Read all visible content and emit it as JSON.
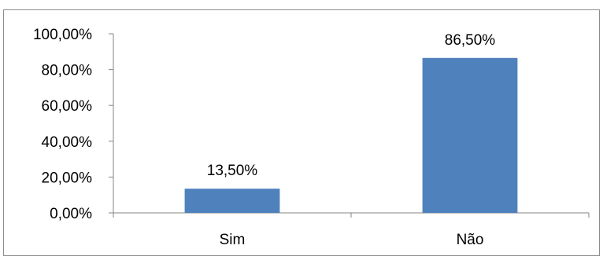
{
  "chart_data": {
    "type": "bar",
    "categories": [
      "Sim",
      "Não"
    ],
    "values": [
      13.5,
      86.5
    ],
    "data_labels": [
      "13,50%",
      "86,50%"
    ],
    "y_ticks": [
      "0,00%",
      "20,00%",
      "40,00%",
      "60,00%",
      "80,00%",
      "100,00%"
    ],
    "y_tick_values": [
      0,
      20,
      40,
      60,
      80,
      100
    ],
    "ylim": [
      0,
      100
    ],
    "grid": false,
    "legend": "none",
    "bar_color": "#4f81bd",
    "title": "",
    "xlabel": "",
    "ylabel": ""
  }
}
